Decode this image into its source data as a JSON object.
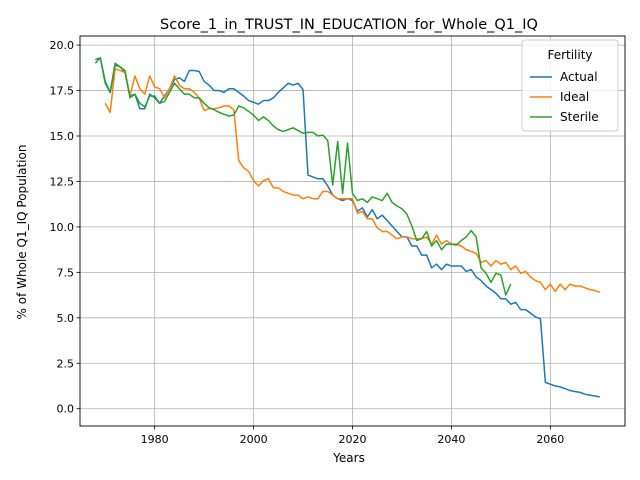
{
  "chart_data": {
    "type": "line",
    "title": "Score_1_in_TRUST_IN_EDUCATION_for_Whole_Q1_IQ",
    "xlabel": "Years",
    "ylabel": "% of Whole Q1_IQ Population",
    "xlim": [
      1964.9,
      2075.1
    ],
    "ylim": [
      -0.95,
      20.5
    ],
    "xticks": [
      1980,
      2000,
      2020,
      2040,
      2060
    ],
    "yticks": [
      0.0,
      2.5,
      5.0,
      7.5,
      10.0,
      12.5,
      15.0,
      17.5,
      20.0
    ],
    "xtick_labels": [
      "1980",
      "2000",
      "2020",
      "2040",
      "2060"
    ],
    "ytick_labels": [
      "0.0",
      "2.5",
      "5.0",
      "7.5",
      "10.0",
      "12.5",
      "15.0",
      "17.5",
      "20.0"
    ],
    "grid": true,
    "legend": {
      "title": "Fertility",
      "position": "top-right"
    },
    "series": [
      {
        "name": "Actual",
        "color": "#1f77b4",
        "x": [
          1968,
          1969,
          1970,
          1971,
          1972,
          1973,
          1974,
          1975,
          1976,
          1977,
          1978,
          1979,
          1980,
          1981,
          1982,
          1983,
          1984,
          1985,
          1986,
          1987,
          1988,
          1989,
          1990,
          1991,
          1992,
          1993,
          1994,
          1995,
          1996,
          1997,
          1998,
          1999,
          2000,
          2001,
          2002,
          2003,
          2004,
          2005,
          2006,
          2007,
          2008,
          2009,
          2010,
          2011,
          2012,
          2013,
          2014,
          2015,
          2016,
          2017,
          2018,
          2019,
          2020,
          2021,
          2022,
          2023,
          2024,
          2025,
          2026,
          2027,
          2028,
          2029,
          2030,
          2031,
          2032,
          2033,
          2034,
          2035,
          2036,
          2037,
          2038,
          2039,
          2040,
          2041,
          2042,
          2043,
          2044,
          2045,
          2046,
          2047,
          2048,
          2049,
          2050,
          2051,
          2052,
          2053,
          2054,
          2055,
          2056,
          2057,
          2058,
          2059,
          2060,
          2061,
          2062,
          2063,
          2064,
          2065,
          2066,
          2067,
          2068,
          2069,
          2070
        ],
        "values": [
          19.2,
          19.3,
          18.0,
          17.4,
          18.9,
          18.8,
          18.5,
          17.2,
          17.3,
          16.5,
          16.5,
          17.3,
          17.1,
          16.8,
          17.2,
          17.6,
          18.1,
          18.2,
          18.0,
          18.6,
          18.6,
          18.55,
          18.0,
          17.8,
          17.5,
          17.5,
          17.4,
          17.6,
          17.6,
          17.4,
          17.2,
          16.95,
          16.85,
          16.75,
          16.95,
          16.95,
          17.1,
          17.4,
          17.65,
          17.9,
          17.8,
          17.9,
          17.55,
          12.85,
          12.75,
          12.65,
          12.65,
          12.25,
          11.75,
          11.55,
          11.45,
          11.55,
          11.45,
          10.85,
          11.05,
          10.55,
          10.95,
          10.45,
          10.65,
          10.35,
          10.05,
          9.75,
          9.45,
          9.45,
          8.95,
          8.95,
          8.45,
          8.45,
          7.75,
          7.95,
          7.65,
          7.95,
          7.85,
          7.85,
          7.85,
          7.55,
          7.65,
          7.25,
          7.05,
          6.75,
          6.55,
          6.35,
          6.05,
          6.05,
          5.75,
          5.85,
          5.45,
          5.45,
          5.25,
          5.05,
          4.95,
          1.45,
          1.35,
          1.25,
          1.2,
          1.1,
          1.0,
          0.95,
          0.9,
          0.8,
          0.75,
          0.7,
          0.65
        ]
      },
      {
        "name": "Ideal",
        "color": "#ff7f0e",
        "x": [
          1970,
          1971,
          1972,
          1973,
          1974,
          1975,
          1976,
          1977,
          1978,
          1979,
          1980,
          1981,
          1982,
          1983,
          1984,
          1985,
          1986,
          1987,
          1988,
          1989,
          1990,
          1991,
          1992,
          1993,
          1994,
          1995,
          1996,
          1997,
          1998,
          1999,
          2000,
          2001,
          2002,
          2003,
          2004,
          2005,
          2006,
          2007,
          2008,
          2009,
          2010,
          2011,
          2012,
          2013,
          2014,
          2015,
          2016,
          2017,
          2018,
          2019,
          2020,
          2021,
          2022,
          2023,
          2024,
          2025,
          2026,
          2027,
          2028,
          2029,
          2030,
          2031,
          2032,
          2033,
          2034,
          2035,
          2036,
          2037,
          2038,
          2039,
          2040,
          2041,
          2042,
          2043,
          2044,
          2045,
          2046,
          2047,
          2048,
          2049,
          2050,
          2051,
          2052,
          2053,
          2054,
          2055,
          2056,
          2057,
          2058,
          2059,
          2060,
          2061,
          2062,
          2063,
          2064,
          2065,
          2066,
          2067,
          2068,
          2069,
          2070
        ],
        "values": [
          16.8,
          16.3,
          18.7,
          18.6,
          18.5,
          17.2,
          18.3,
          17.6,
          17.3,
          18.3,
          17.7,
          17.6,
          17.1,
          17.6,
          18.3,
          17.8,
          17.6,
          17.6,
          17.4,
          17.1,
          16.4,
          16.5,
          16.5,
          16.55,
          16.65,
          16.65,
          16.45,
          13.65,
          13.25,
          13.05,
          12.55,
          12.25,
          12.55,
          12.65,
          12.15,
          12.15,
          11.95,
          11.85,
          11.75,
          11.75,
          11.55,
          11.65,
          11.55,
          11.55,
          11.95,
          11.95,
          11.75,
          11.55,
          11.55,
          11.55,
          11.55,
          10.75,
          10.85,
          10.45,
          10.45,
          9.95,
          9.75,
          9.75,
          9.55,
          9.35,
          9.45,
          9.45,
          9.35,
          9.35,
          9.35,
          9.45,
          9.05,
          9.55,
          9.05,
          9.25,
          9.05,
          9.05,
          8.95,
          8.75,
          8.65,
          8.55,
          8.05,
          8.15,
          7.85,
          8.15,
          7.95,
          8.05,
          7.65,
          7.85,
          7.45,
          7.55,
          7.25,
          7.05,
          6.95,
          6.55,
          6.85,
          6.45,
          6.85,
          6.55,
          6.85,
          6.75,
          6.75,
          6.65,
          6.55,
          6.5,
          6.4
        ]
      },
      {
        "name": "Sterile",
        "color": "#2ca02c",
        "x": [
          1968,
          1969,
          1970,
          1971,
          1972,
          1973,
          1974,
          1975,
          1976,
          1977,
          1978,
          1979,
          1980,
          1981,
          1982,
          1983,
          1984,
          1985,
          1986,
          1987,
          1988,
          1989,
          1990,
          1991,
          1992,
          1993,
          1994,
          1995,
          1996,
          1997,
          1998,
          1999,
          2000,
          2001,
          2002,
          2003,
          2004,
          2005,
          2006,
          2007,
          2008,
          2009,
          2010,
          2011,
          2012,
          2013,
          2014,
          2015,
          2016,
          2017,
          2018,
          2019,
          2020,
          2021,
          2022,
          2023,
          2024,
          2025,
          2026,
          2027,
          2028,
          2029,
          2030,
          2031,
          2032,
          2033,
          2034,
          2035,
          2036,
          2037,
          2038,
          2039,
          2040,
          2041,
          2042,
          2043,
          2044,
          2045,
          2046,
          2047,
          2048,
          2049,
          2050,
          2051,
          2052
        ],
        "values": [
          19.0,
          19.3,
          17.9,
          17.4,
          19.0,
          18.8,
          18.6,
          17.1,
          17.3,
          16.8,
          16.6,
          17.2,
          17.2,
          16.8,
          16.9,
          17.4,
          17.9,
          17.6,
          17.3,
          17.3,
          17.1,
          17.1,
          16.8,
          16.55,
          16.45,
          16.3,
          16.2,
          16.1,
          16.15,
          16.65,
          16.55,
          16.35,
          16.15,
          15.85,
          16.05,
          15.85,
          15.55,
          15.35,
          15.25,
          15.35,
          15.45,
          15.3,
          15.15,
          15.2,
          15.2,
          15.0,
          15.05,
          14.75,
          12.3,
          14.7,
          11.85,
          14.6,
          11.85,
          11.45,
          11.55,
          11.35,
          11.65,
          11.55,
          11.45,
          11.85,
          11.35,
          11.15,
          11.0,
          10.7,
          10.05,
          9.25,
          9.35,
          9.75,
          8.95,
          9.25,
          8.75,
          9.05,
          9.05,
          9.0,
          9.25,
          9.45,
          9.8,
          9.45,
          7.75,
          7.45,
          6.95,
          7.45,
          7.35,
          6.25,
          6.85
        ]
      }
    ]
  }
}
